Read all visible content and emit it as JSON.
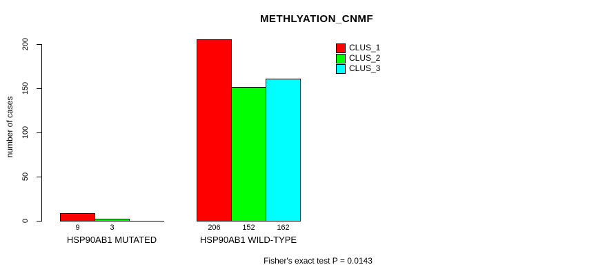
{
  "chart_data": {
    "type": "bar",
    "title": "METHLYATION_CNMF",
    "xlabel": "",
    "ylabel": "number of cases",
    "categories": [
      "HSP90AB1 MUTATED",
      "HSP90AB1 WILD-TYPE"
    ],
    "series": [
      {
        "name": "CLUS_1",
        "color": "#ff0000",
        "values": [
          9,
          206
        ]
      },
      {
        "name": "CLUS_2",
        "color": "#00ff00",
        "values": [
          3,
          152
        ]
      },
      {
        "name": "CLUS_3",
        "color": "#00ffff",
        "values": [
          0,
          162
        ]
      }
    ],
    "bar_value_labels": [
      [
        "9",
        "3",
        ""
      ],
      [
        "206",
        "152",
        "162"
      ]
    ],
    "yticks": [
      0,
      50,
      100,
      150,
      200
    ],
    "ylim": [
      0,
      206
    ],
    "grid": false,
    "legend": {
      "position": "top-right",
      "entries": [
        "CLUS_1",
        "CLUS_2",
        "CLUS_3"
      ]
    },
    "footnote": "Fisher's exact test P = 0.0143"
  }
}
